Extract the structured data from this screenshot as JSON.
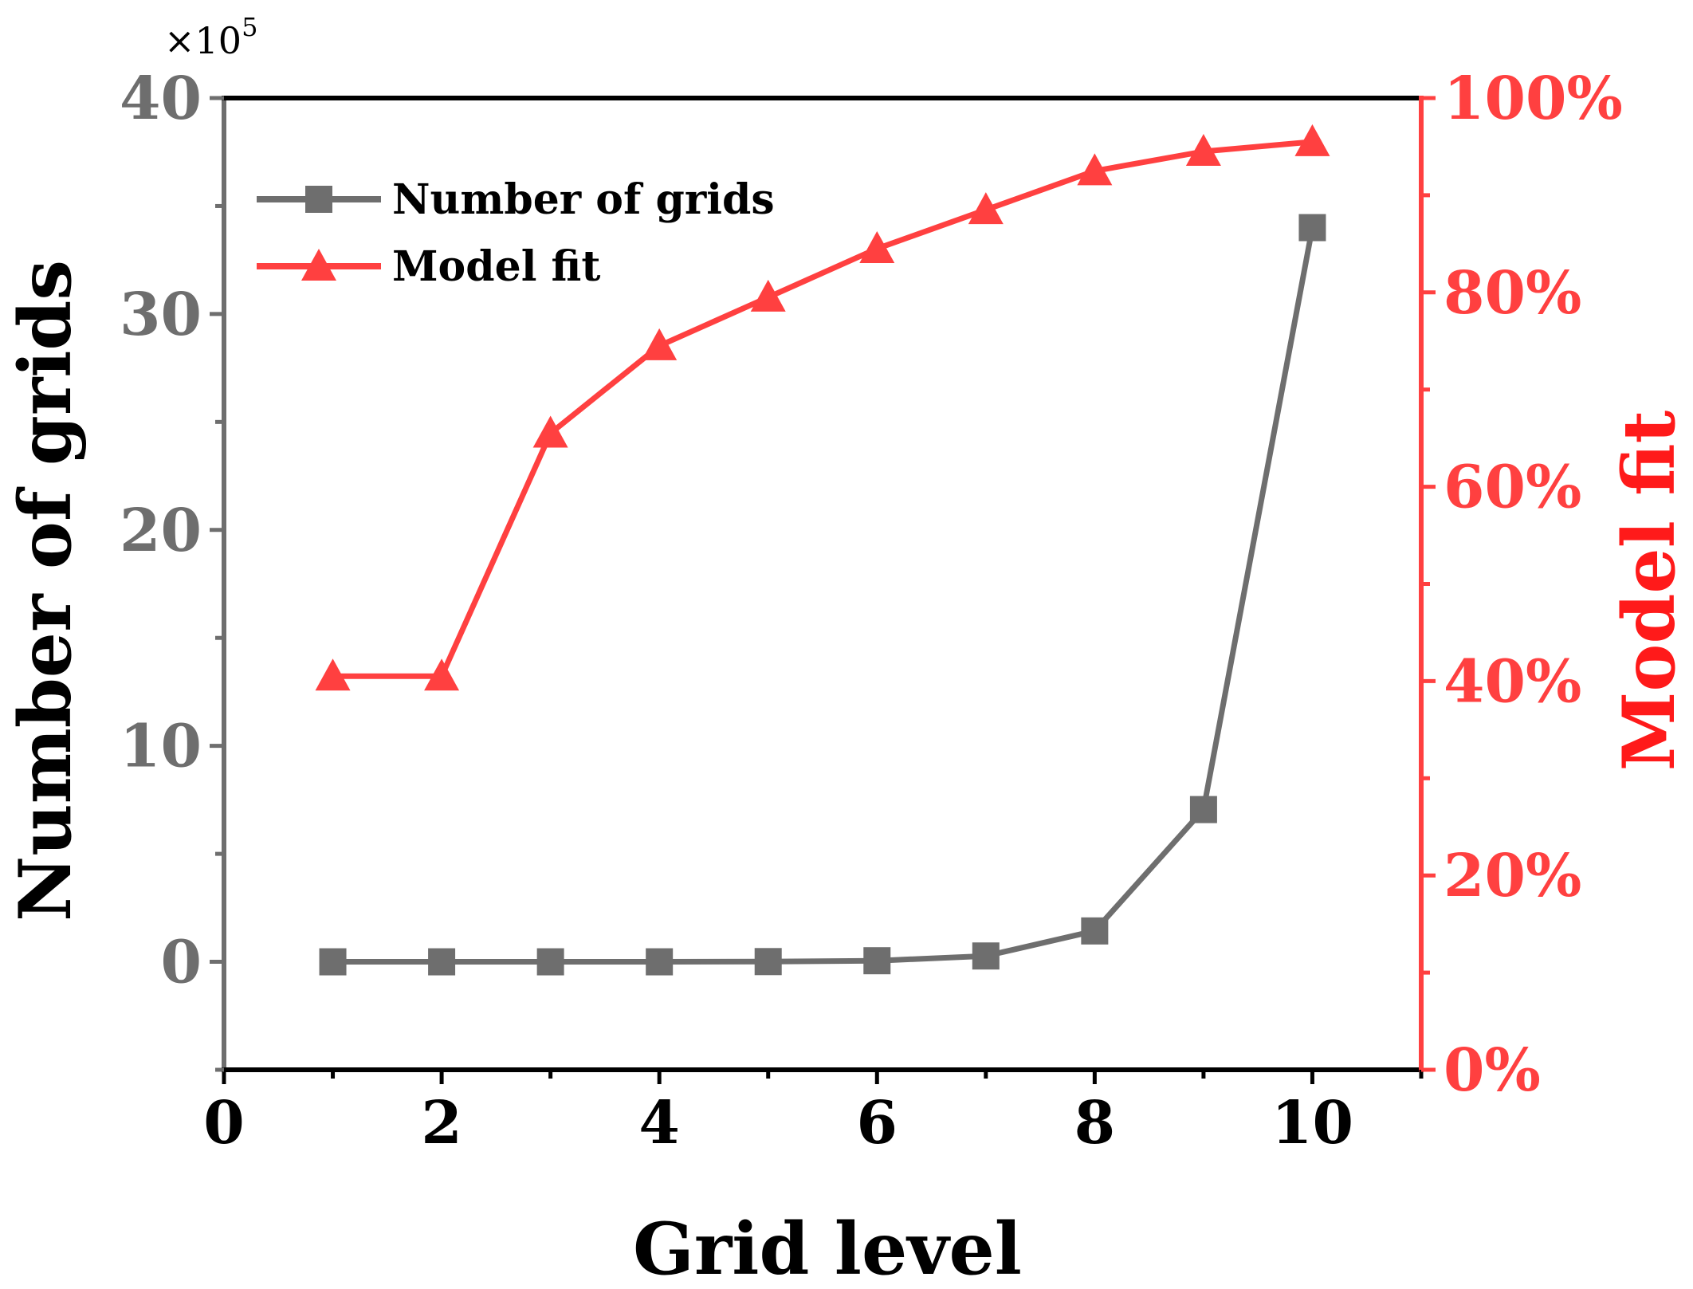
{
  "chart_data": {
    "type": "line",
    "xlabel": "Grid level",
    "ylabel_left": "Number of grids",
    "ylabel_right": "Model fit",
    "left_axis_multiplier": "×10",
    "left_axis_multiplier_exponent": "5",
    "xlim": [
      0,
      11
    ],
    "ylim_left": [
      -5,
      40
    ],
    "ylim_right": [
      0,
      100
    ],
    "xticks": [
      0,
      2,
      4,
      6,
      8,
      10
    ],
    "xtick_labels": [
      "0",
      "2",
      "4",
      "6",
      "8",
      "10"
    ],
    "yticks_left": [
      0,
      10,
      20,
      30,
      40
    ],
    "ytick_labels_left": [
      "0",
      "10",
      "20",
      "30",
      "40"
    ],
    "yticks_right": [
      0,
      20,
      40,
      60,
      80,
      100
    ],
    "ytick_labels_right": [
      "0%",
      "20%",
      "40%",
      "60%",
      "80%",
      "100%"
    ],
    "x": [
      1,
      2,
      3,
      4,
      5,
      6,
      7,
      8,
      9,
      10
    ],
    "series": [
      {
        "name": "Number of grids",
        "axis": "left",
        "marker": "square",
        "color": "#6e6e6e",
        "values": [
          0.0,
          0.0,
          0.0,
          0.0,
          0.01,
          0.05,
          0.27,
          1.43,
          7.05,
          34.0
        ]
      },
      {
        "name": "Model fit",
        "axis": "right",
        "marker": "triangle",
        "color": "#ff4040",
        "values": [
          40.5,
          40.5,
          65.5,
          74.5,
          79.5,
          84.5,
          88.5,
          92.5,
          94.5,
          95.5
        ]
      }
    ],
    "legend_position": "top-left"
  }
}
